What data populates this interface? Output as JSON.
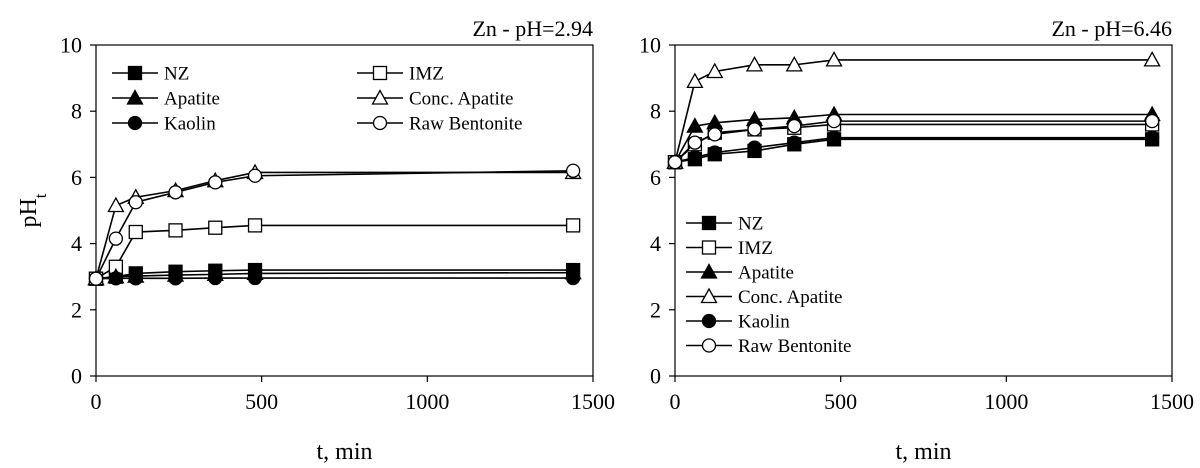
{
  "chart_data": [
    {
      "type": "line",
      "title": "Zn - pH=2.94",
      "xlabel": "t, min",
      "ylabel": "pHt",
      "xlim": [
        0,
        1500
      ],
      "ylim": [
        0,
        10
      ],
      "xticks": [
        0,
        500,
        1000,
        1500
      ],
      "yticks": [
        0,
        2,
        4,
        6,
        8,
        10
      ],
      "grid": false,
      "legend_position": "top-left, two columns",
      "x": [
        0,
        60,
        120,
        240,
        360,
        480,
        1440
      ],
      "series": [
        {
          "name": "NZ",
          "marker": "square-filled",
          "values": [
            2.94,
            3.0,
            3.1,
            3.15,
            3.18,
            3.2,
            3.2
          ]
        },
        {
          "name": "IMZ",
          "marker": "square-open",
          "values": [
            2.94,
            3.3,
            4.35,
            4.4,
            4.48,
            4.55,
            4.55
          ]
        },
        {
          "name": "Apatite",
          "marker": "triangle-filled",
          "values": [
            2.94,
            3.0,
            3.02,
            3.05,
            3.07,
            3.1,
            3.12
          ]
        },
        {
          "name": "Conc. Apatite",
          "marker": "triangle-open",
          "values": [
            2.94,
            5.15,
            5.4,
            5.6,
            5.9,
            6.15,
            6.15
          ]
        },
        {
          "name": "Kaolin",
          "marker": "circle-filled",
          "values": [
            2.94,
            2.95,
            2.95,
            2.95,
            2.96,
            2.96,
            2.96
          ]
        },
        {
          "name": "Raw Bentonite",
          "marker": "circle-open",
          "values": [
            2.94,
            4.15,
            5.25,
            5.55,
            5.85,
            6.05,
            6.2
          ]
        }
      ]
    },
    {
      "type": "line",
      "title": "Zn - pH=6.46",
      "xlabel": "t, min",
      "ylabel": "",
      "xlim": [
        0,
        1500
      ],
      "ylim": [
        0,
        10
      ],
      "xticks": [
        0,
        500,
        1000,
        1500
      ],
      "yticks": [
        0,
        2,
        4,
        6,
        8,
        10
      ],
      "grid": false,
      "legend_position": "bottom-left, one column",
      "x": [
        0,
        60,
        120,
        240,
        360,
        480,
        1440
      ],
      "series": [
        {
          "name": "NZ",
          "marker": "square-filled",
          "values": [
            6.46,
            6.55,
            6.7,
            6.8,
            7.0,
            7.15,
            7.15
          ]
        },
        {
          "name": "IMZ",
          "marker": "square-open",
          "values": [
            6.46,
            7.0,
            7.35,
            7.45,
            7.5,
            7.6,
            7.6
          ]
        },
        {
          "name": "Apatite",
          "marker": "triangle-filled",
          "values": [
            6.46,
            7.55,
            7.65,
            7.75,
            7.8,
            7.9,
            7.9
          ]
        },
        {
          "name": "Conc. Apatite",
          "marker": "triangle-open",
          "values": [
            6.46,
            8.9,
            9.2,
            9.4,
            9.4,
            9.55,
            9.55
          ]
        },
        {
          "name": "Kaolin",
          "marker": "circle-filled",
          "values": [
            6.46,
            6.6,
            6.75,
            6.9,
            7.05,
            7.2,
            7.2
          ]
        },
        {
          "name": "Raw Bentonite",
          "marker": "circle-open",
          "values": [
            6.46,
            7.05,
            7.3,
            7.45,
            7.55,
            7.7,
            7.7
          ]
        }
      ]
    }
  ]
}
